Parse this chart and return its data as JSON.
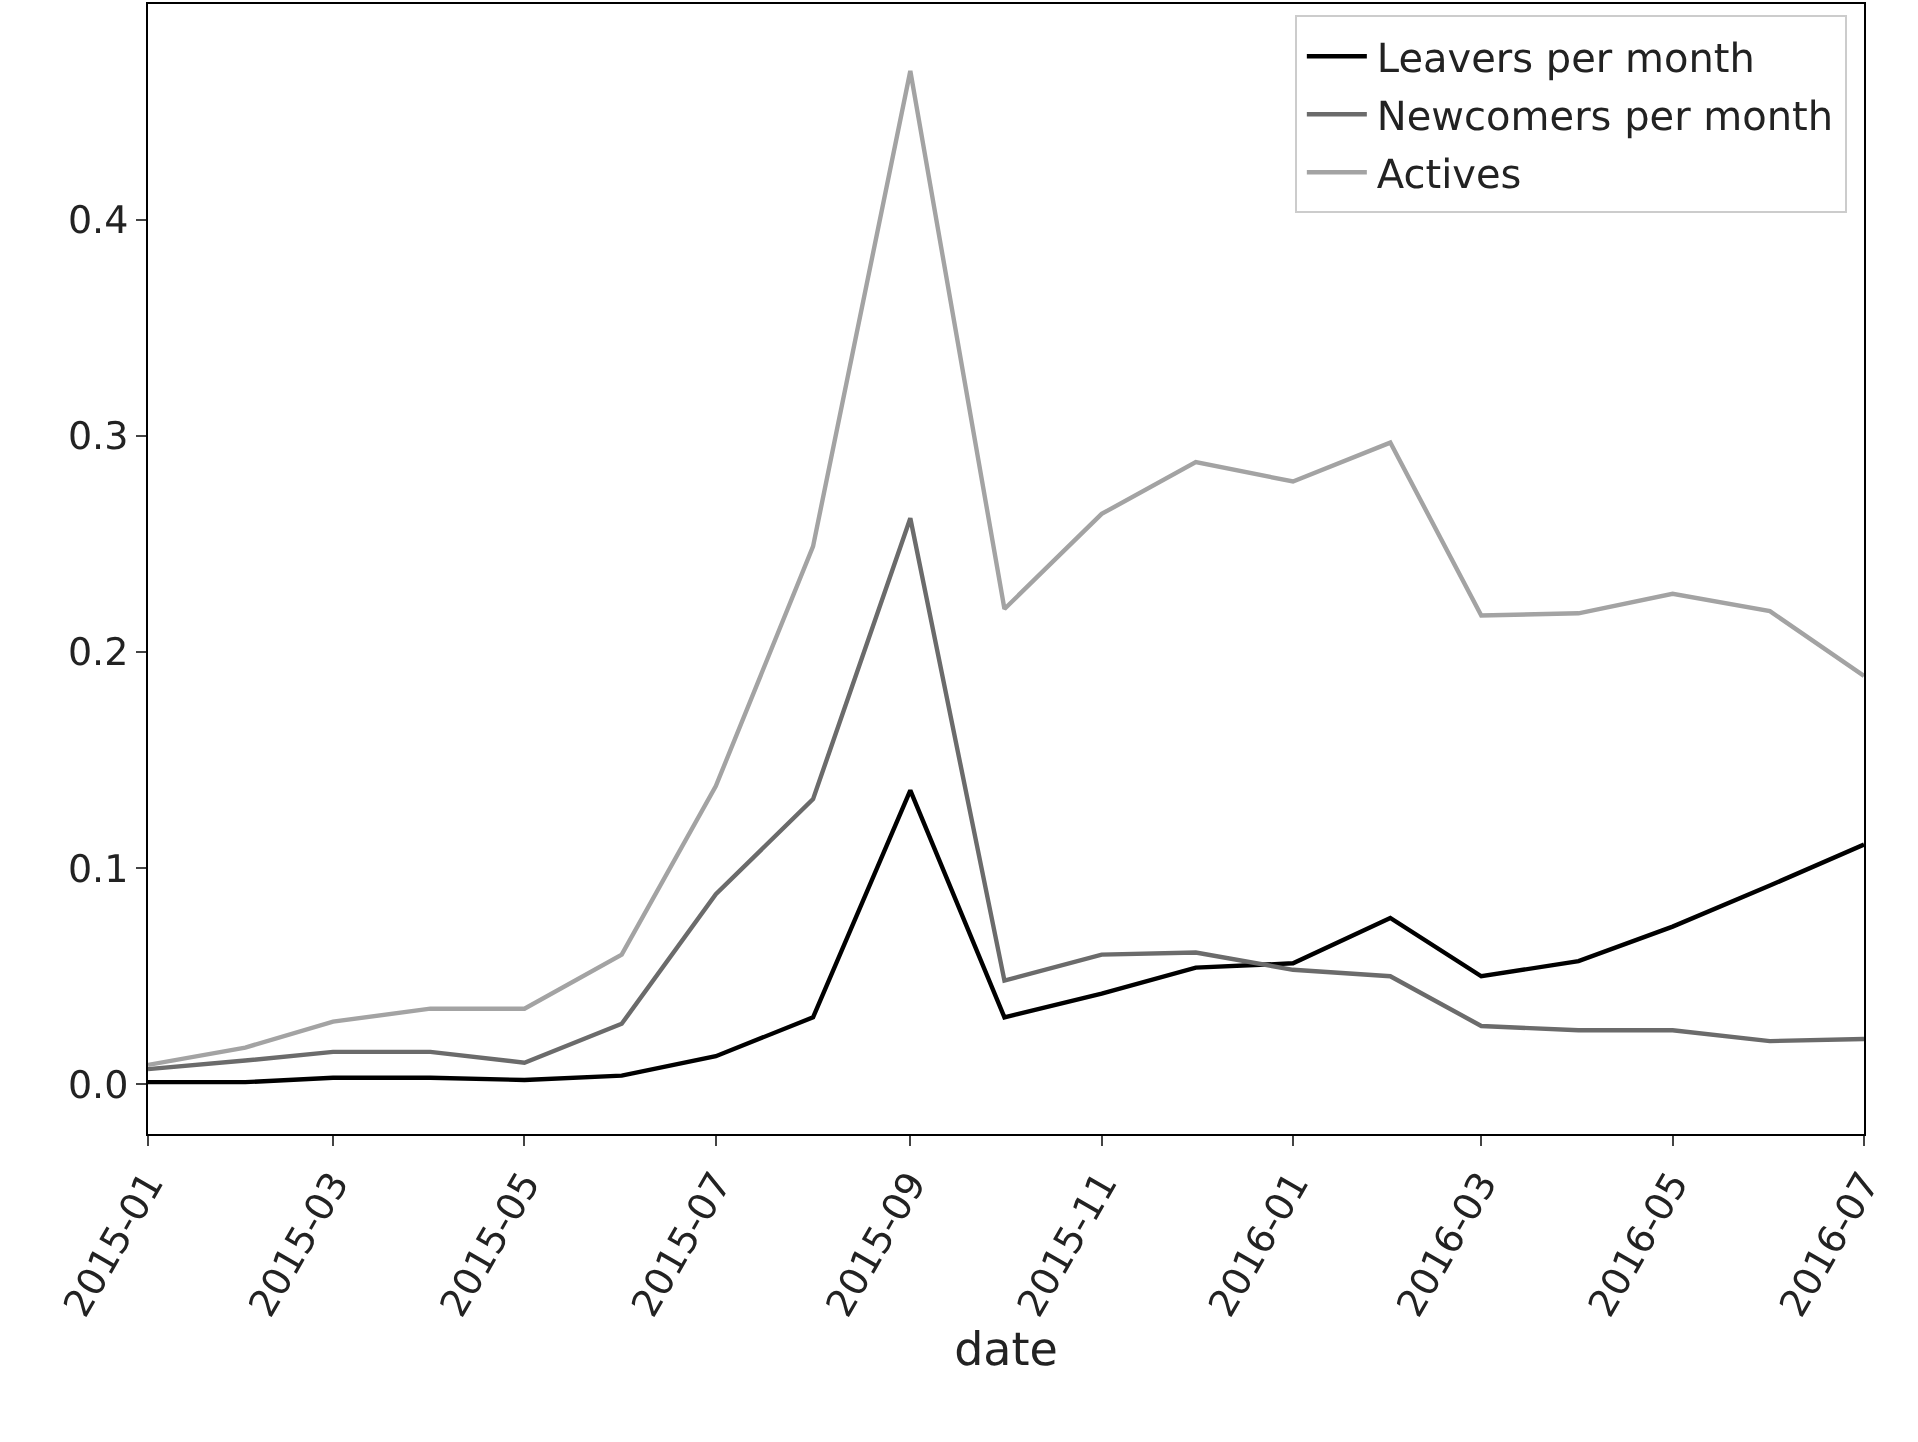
{
  "chart_data": {
    "type": "line",
    "xlabel": "date",
    "x": [
      "2015-01",
      "2015-02",
      "2015-03",
      "2015-04",
      "2015-05",
      "2015-06",
      "2015-07",
      "2015-08",
      "2015-09",
      "2015-10",
      "2015-11",
      "2015-12",
      "2016-01",
      "2016-02",
      "2016-03",
      "2016-04",
      "2016-05",
      "2016-06",
      "2016-07"
    ],
    "series": [
      {
        "name": "Leavers per month",
        "color": "#000000",
        "values": [
          0.001,
          0.001,
          0.003,
          0.003,
          0.002,
          0.004,
          0.013,
          0.031,
          0.136,
          0.031,
          0.042,
          0.054,
          0.056,
          0.077,
          0.05,
          0.057,
          0.073,
          0.092,
          0.111
        ]
      },
      {
        "name": "Newcomers per month",
        "color": "#6b6b6b",
        "values": [
          0.007,
          0.011,
          0.015,
          0.015,
          0.01,
          0.028,
          0.088,
          0.132,
          0.262,
          0.048,
          0.06,
          0.061,
          0.053,
          0.05,
          0.027,
          0.025,
          0.025,
          0.02,
          0.021
        ]
      },
      {
        "name": "Actives",
        "color": "#a3a3a3",
        "values": [
          0.009,
          0.017,
          0.029,
          0.035,
          0.035,
          0.06,
          0.138,
          0.249,
          0.469,
          0.22,
          0.264,
          0.288,
          0.279,
          0.297,
          0.217,
          0.218,
          0.227,
          0.219,
          0.189
        ]
      }
    ],
    "xlim": [
      "2015-01",
      "2016-07"
    ],
    "xticks": [
      "2015-01",
      "2015-03",
      "2015-05",
      "2015-07",
      "2015-09",
      "2015-11",
      "2016-01",
      "2016-03",
      "2016-05",
      "2016-07"
    ],
    "ylim": [
      -0.023,
      0.5
    ],
    "yticks": [
      {
        "value": 0,
        "label": "0.0"
      },
      0.1,
      0.2,
      0.3,
      0.4
    ],
    "grid": false,
    "legend": "top right",
    "marker": "none",
    "line_style": "solid"
  }
}
